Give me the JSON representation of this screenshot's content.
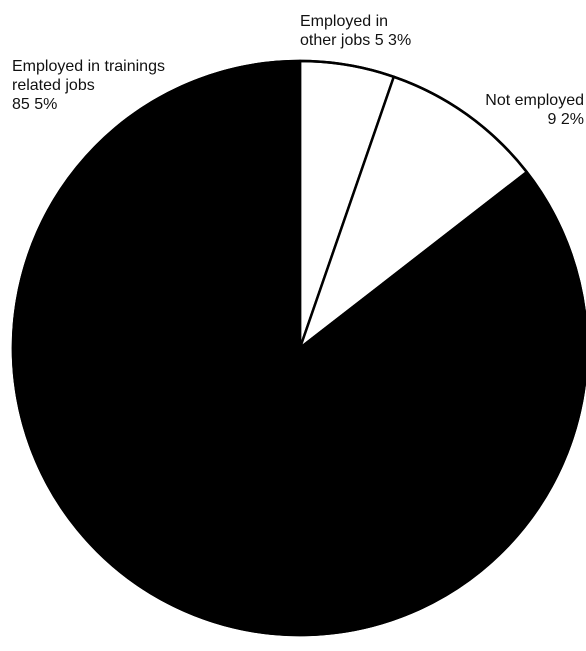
{
  "chart_data": {
    "type": "pie",
    "slices": [
      {
        "label_lines": [
          "Employed in",
          "other jobs 5 3%"
        ],
        "value": 5.3,
        "color": "#ffffff"
      },
      {
        "label_lines": [
          "Not employed",
          "9 2%"
        ],
        "value": 9.2,
        "color": "#ffffff"
      },
      {
        "label_lines": [
          "Employed in trainings",
          "related jobs",
          "85 5%"
        ],
        "value": 85.5,
        "color": "#000000"
      }
    ],
    "start_angle_deg": 0,
    "direction": "clockwise"
  }
}
